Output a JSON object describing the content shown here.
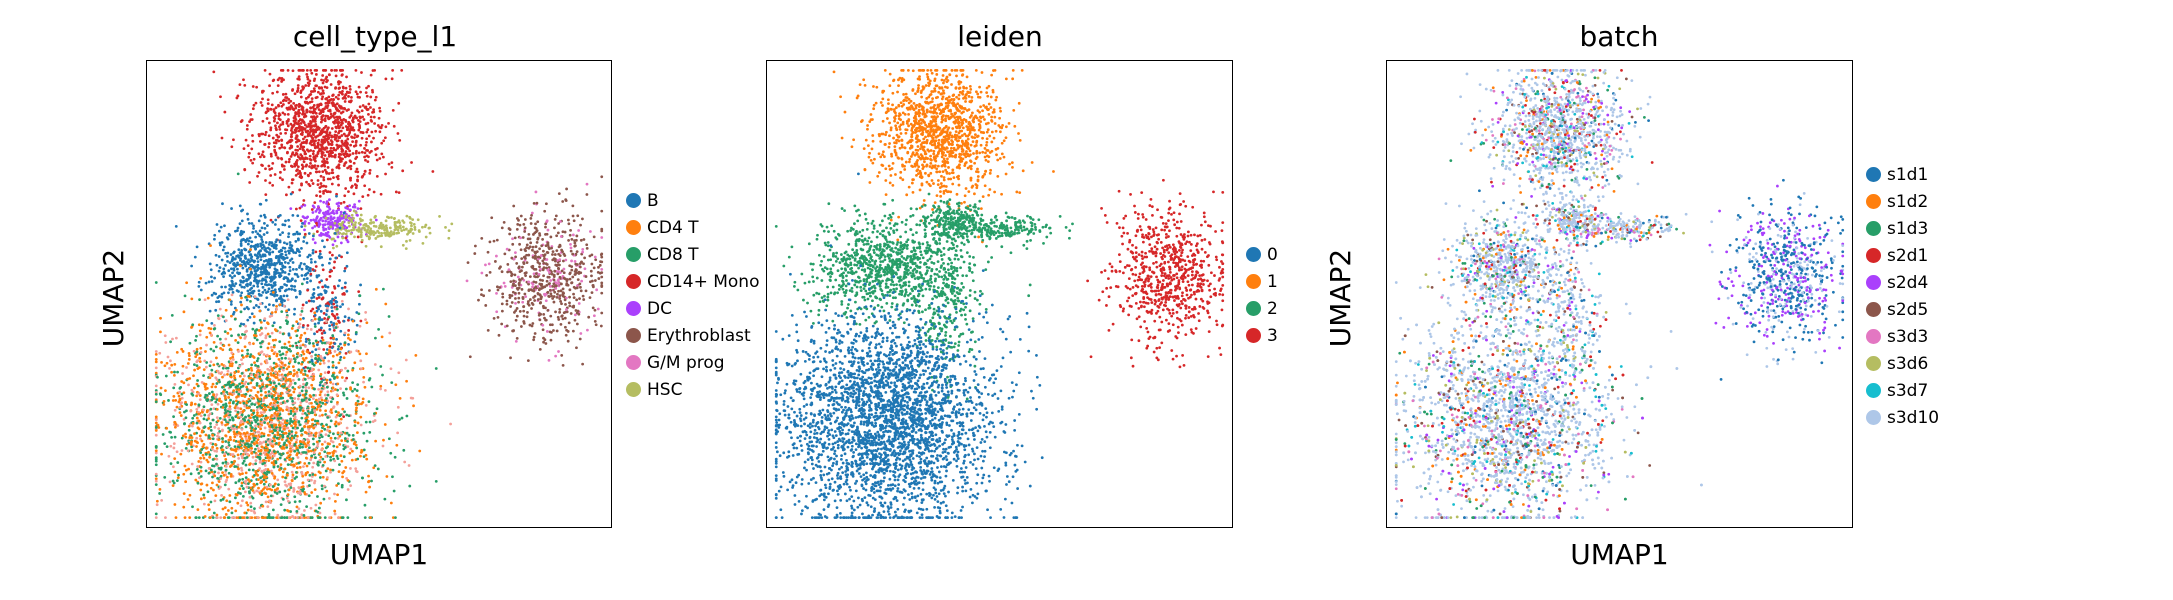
{
  "chart_data": [
    {
      "type": "scatter",
      "title": "cell_type_l1",
      "xlabel": "UMAP1",
      "ylabel": "UMAP2",
      "grid": false,
      "legend_placement": "right",
      "series": [
        {
          "name": "B",
          "color": "#1f77b4"
        },
        {
          "name": "CD4 T",
          "color": "#ff7f0e"
        },
        {
          "name": "CD8 T",
          "color": "#279e68"
        },
        {
          "name": "CD14+ Mono",
          "color": "#d62728"
        },
        {
          "name": "DC",
          "color": "#aa40fc"
        },
        {
          "name": "Erythroblast",
          "color": "#8c564b"
        },
        {
          "name": "G/M prog",
          "color": "#e377c2"
        },
        {
          "name": "HSC",
          "color": "#b5bd61"
        }
      ]
    },
    {
      "type": "scatter",
      "title": "leiden",
      "xlabel": "",
      "ylabel": "",
      "grid": false,
      "legend_placement": "right",
      "series": [
        {
          "name": "0",
          "color": "#1f77b4"
        },
        {
          "name": "1",
          "color": "#ff7f0e"
        },
        {
          "name": "2",
          "color": "#279e68"
        },
        {
          "name": "3",
          "color": "#d62728"
        }
      ]
    },
    {
      "type": "scatter",
      "title": "batch",
      "xlabel": "UMAP1",
      "ylabel": "UMAP2",
      "grid": false,
      "legend_placement": "right",
      "series": [
        {
          "name": "s1d1",
          "color": "#1f77b4"
        },
        {
          "name": "s1d2",
          "color": "#ff7f0e"
        },
        {
          "name": "s1d3",
          "color": "#279e68"
        },
        {
          "name": "s2d1",
          "color": "#d62728"
        },
        {
          "name": "s2d4",
          "color": "#aa40fc"
        },
        {
          "name": "s2d5",
          "color": "#8c564b"
        },
        {
          "name": "s3d3",
          "color": "#e377c2"
        },
        {
          "name": "s3d6",
          "color": "#b5bd61"
        },
        {
          "name": "s3d7",
          "color": "#17becf"
        },
        {
          "name": "s3d10",
          "color": "#aec7e8"
        }
      ]
    }
  ]
}
